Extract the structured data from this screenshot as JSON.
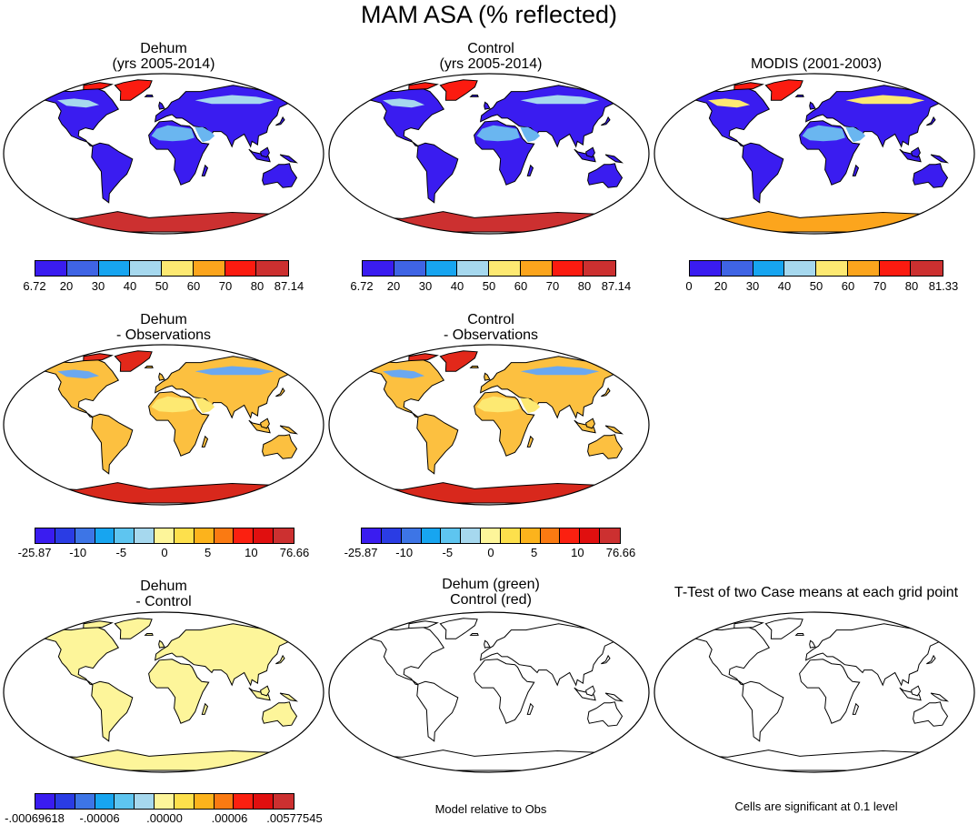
{
  "title": "MAM ASA (% reflected)",
  "panels": {
    "dehum": {
      "title_line1": "Dehum",
      "title_line2": "(yrs 2005-2014)",
      "fill": "field"
    },
    "control": {
      "title_line1": "Control",
      "title_line2": "(yrs 2005-2014)",
      "fill": "field"
    },
    "modis": {
      "title_line1": "MODIS (2001-2003)",
      "fill": "field_modis"
    },
    "dehum_obs": {
      "title_line1": "Dehum",
      "title_line2": "- Observations",
      "fill": "diff"
    },
    "control_obs": {
      "title_line1": "Control",
      "title_line2": "- Observations",
      "fill": "diff"
    },
    "dehum_control": {
      "title_line1": "Dehum",
      "title_line2": "- Control",
      "fill": "pale"
    },
    "model_rel": {
      "title_line1": "Dehum (green)",
      "title_line2": "Control (red)",
      "caption": "Model relative to Obs",
      "fill": "outline"
    },
    "ttest": {
      "title_line1": "T-Test of two Case means at each grid point",
      "caption": "Cells are significant at 0.1 level",
      "fill": "outline"
    }
  },
  "colorbars": {
    "abs_model": {
      "colors": [
        "#3a1cf0",
        "#3f64e4",
        "#17a5f0",
        "#a6d8ee",
        "#fde972",
        "#fca51d",
        "#fb1b10",
        "#cc3030"
      ],
      "labels": [
        "6.72",
        "20",
        "30",
        "40",
        "50",
        "60",
        "70",
        "80",
        "87.14"
      ]
    },
    "abs_modis": {
      "colors": [
        "#3a1cf0",
        "#3f64e4",
        "#17a5f0",
        "#a6d8ee",
        "#fde972",
        "#fca51d",
        "#fb1b10",
        "#cc3030"
      ],
      "labels": [
        "0",
        "20",
        "30",
        "40",
        "50",
        "60",
        "70",
        "80",
        "81.33"
      ]
    },
    "diff": {
      "colors": [
        "#3a1cf0",
        "#2a3ce4",
        "#3d75e6",
        "#17a5f0",
        "#5ec5f0",
        "#a6d8ee",
        "#fdf59a",
        "#fde04c",
        "#fcb31c",
        "#fa7a12",
        "#fb2010",
        "#e00f0f",
        "#cc3030"
      ],
      "labels": [
        "-25.87",
        "-10",
        "-5",
        "0",
        "5",
        "10",
        "76.66"
      ]
    },
    "pale": {
      "colors": [
        "#3a1cf0",
        "#2a3ce4",
        "#3d75e6",
        "#17a5f0",
        "#5ec5f0",
        "#a6d8ee",
        "#fdf59a",
        "#fde04c",
        "#fcb31c",
        "#fa7a12",
        "#fb2010",
        "#e00f0f",
        "#cc3030"
      ],
      "labels": [
        "-.00069618",
        "-.00006",
        ".00000",
        ".00006",
        ".00577545"
      ]
    }
  },
  "fill_colors": {
    "field": {
      "land": "#3a1cf0",
      "desert": "#6ab6f0",
      "snow": "#fb1b10",
      "antarctica": "#cc3030",
      "boreal": "#a6d8ee"
    },
    "field_modis": {
      "land": "#3a1cf0",
      "desert": "#6ab6f0",
      "snow": "#fb1b10",
      "antarctica": "#fca51d",
      "boreal": "#fde972"
    },
    "diff": {
      "land": "#fcc040",
      "desert": "#fde972",
      "snow": "#e2281a",
      "antarctica": "#d8281c",
      "boreal": "#6aa8f0"
    },
    "pale": {
      "land": "#fdf59a",
      "desert": "#fdf59a",
      "snow": "#fdf59a",
      "antarctica": "#fdf59a",
      "boreal": "#fdf59a"
    },
    "outline": {
      "land": "#ffffff",
      "desert": "#ffffff",
      "snow": "#ffffff",
      "antarctica": "#ffffff",
      "boreal": "#ffffff"
    }
  }
}
